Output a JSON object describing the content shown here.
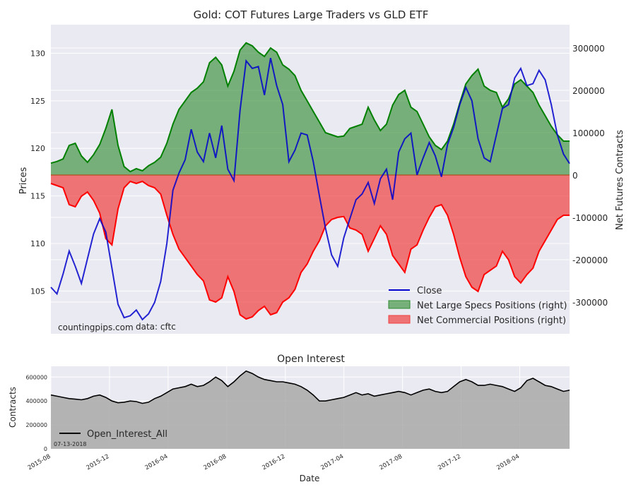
{
  "chart_data": [
    {
      "type": "line-area",
      "title": "Gold: COT Futures Large Traders vs GLD ETF",
      "ylabel": "Prices",
      "ylabel_right": "Net Futures Contracts",
      "ylim": [
        100.5,
        133
      ],
      "ylim_right": [
        -375000,
        355000
      ],
      "yticks": [
        105,
        110,
        115,
        120,
        125,
        130
      ],
      "yticks_right": [
        -300000,
        -200000,
        -100000,
        0,
        100000,
        200000,
        300000
      ],
      "watermark": "countingpips.com",
      "source": "data: cftc",
      "legend": {
        "position": "bottom-right",
        "entries": [
          "Close",
          "Net Large Specs Positions (right)",
          "Net Commercial Positions (right)"
        ]
      },
      "colors": {
        "close": "#0000cc",
        "specs_fill": "#2e8b2e",
        "specs_line": "#008000",
        "comm_fill": "#f04040",
        "comm_line": "#ff0000"
      },
      "series": [
        {
          "name": "Close",
          "values": [
            105.4,
            104.7,
            106.8,
            109.2,
            107.6,
            105.8,
            108.4,
            111.0,
            112.6,
            111.2,
            107.4,
            103.6,
            102.2,
            102.4,
            103.0,
            102.0,
            102.6,
            103.8,
            106.0,
            110.0,
            115.6,
            117.4,
            118.8,
            122.0,
            119.6,
            118.6,
            121.6,
            119.0,
            122.4,
            117.8,
            116.6,
            124.0,
            129.2,
            128.4,
            128.6,
            125.6,
            129.5,
            126.6,
            124.6,
            118.6,
            119.8,
            121.6,
            121.4,
            118.6,
            115.0,
            111.6,
            108.8,
            107.6,
            110.6,
            112.6,
            114.6,
            115.2,
            116.4,
            114.2,
            116.8,
            117.8,
            114.6,
            119.6,
            121.0,
            121.6,
            117.2,
            119.0,
            120.6,
            119.2,
            117.0,
            120.4,
            122.2,
            124.6,
            126.4,
            125.0,
            121.0,
            119.0,
            118.6,
            121.4,
            124.2,
            124.6,
            127.4,
            128.4,
            126.6,
            126.8,
            128.2,
            127.2,
            124.6,
            121.4,
            119.4,
            118.4
          ]
        },
        {
          "name": "Net Large Specs Positions (right)",
          "values": [
            28000,
            32000,
            38000,
            70000,
            75000,
            45000,
            30000,
            48000,
            72000,
            110000,
            155000,
            70000,
            20000,
            8000,
            15000,
            10000,
            22000,
            30000,
            42000,
            75000,
            120000,
            155000,
            175000,
            195000,
            205000,
            220000,
            265000,
            278000,
            260000,
            210000,
            245000,
            295000,
            312000,
            305000,
            290000,
            280000,
            300000,
            290000,
            260000,
            250000,
            235000,
            200000,
            175000,
            150000,
            125000,
            100000,
            95000,
            90000,
            92000,
            110000,
            115000,
            120000,
            160000,
            130000,
            105000,
            120000,
            165000,
            190000,
            200000,
            160000,
            150000,
            120000,
            90000,
            70000,
            60000,
            80000,
            120000,
            170000,
            215000,
            235000,
            250000,
            210000,
            200000,
            195000,
            160000,
            180000,
            215000,
            225000,
            210000,
            195000,
            165000,
            140000,
            115000,
            95000,
            80000,
            80000
          ]
        },
        {
          "name": "Net Commercial Positions (right)",
          "values": [
            -20000,
            -25000,
            -30000,
            -70000,
            -75000,
            -50000,
            -40000,
            -60000,
            -90000,
            -150000,
            -165000,
            -80000,
            -30000,
            -15000,
            -20000,
            -15000,
            -25000,
            -30000,
            -45000,
            -95000,
            -140000,
            -175000,
            -195000,
            -215000,
            -235000,
            -250000,
            -295000,
            -300000,
            -290000,
            -240000,
            -275000,
            -330000,
            -340000,
            -335000,
            -320000,
            -310000,
            -330000,
            -325000,
            -300000,
            -290000,
            -270000,
            -230000,
            -210000,
            -180000,
            -155000,
            -120000,
            -105000,
            -100000,
            -98000,
            -125000,
            -130000,
            -140000,
            -180000,
            -150000,
            -120000,
            -140000,
            -190000,
            -210000,
            -230000,
            -175000,
            -165000,
            -130000,
            -100000,
            -75000,
            -70000,
            -95000,
            -140000,
            -195000,
            -240000,
            -265000,
            -275000,
            -235000,
            -225000,
            -215000,
            -180000,
            -200000,
            -240000,
            -255000,
            -235000,
            -220000,
            -180000,
            -155000,
            -130000,
            -105000,
            -95000,
            -95000
          ]
        }
      ]
    },
    {
      "type": "area",
      "title": "Open Interest",
      "xlabel": "Date",
      "ylabel": "Contracts",
      "ylim": [
        0,
        690000
      ],
      "yticks": [
        0,
        200000,
        400000,
        600000
      ],
      "ytick_labels": [
        "0",
        "200000",
        "400000",
        "600000"
      ],
      "xtick_labels": [
        "2015-08",
        "2015-12",
        "2016-04",
        "2016-08",
        "2016-12",
        "2017-04",
        "2017-08",
        "2017-12",
        "2018-04"
      ],
      "legend": {
        "position": "bottom-left",
        "entries": [
          "Open_Interest_All"
        ]
      },
      "date_note": "07-13-2018",
      "colors": {
        "line": "#000000",
        "fill": "#a9a9a9"
      },
      "series": [
        {
          "name": "Open_Interest_All",
          "values": [
            450000,
            440000,
            430000,
            420000,
            415000,
            410000,
            420000,
            440000,
            450000,
            430000,
            400000,
            385000,
            390000,
            400000,
            395000,
            380000,
            390000,
            420000,
            440000,
            470000,
            500000,
            510000,
            520000,
            540000,
            520000,
            530000,
            560000,
            600000,
            570000,
            520000,
            560000,
            610000,
            650000,
            630000,
            600000,
            580000,
            570000,
            560000,
            560000,
            550000,
            540000,
            520000,
            490000,
            450000,
            400000,
            400000,
            410000,
            420000,
            430000,
            450000,
            470000,
            450000,
            460000,
            440000,
            450000,
            460000,
            470000,
            480000,
            470000,
            450000,
            470000,
            490000,
            500000,
            480000,
            470000,
            480000,
            520000,
            560000,
            580000,
            560000,
            530000,
            530000,
            540000,
            530000,
            520000,
            500000,
            480000,
            510000,
            570000,
            590000,
            560000,
            530000,
            520000,
            500000,
            480000,
            490000
          ]
        }
      ]
    }
  ]
}
